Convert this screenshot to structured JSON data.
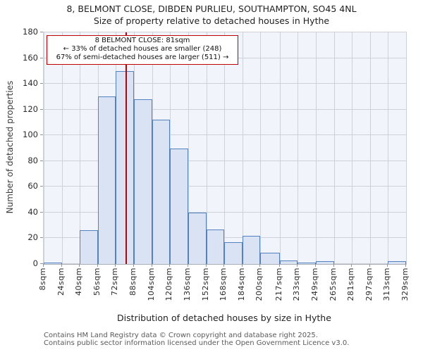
{
  "page": {
    "title_line1": "8, BELMONT CLOSE, DIBDEN PURLIEU, SOUTHAMPTON, SO45 4NL",
    "title_line2": "Size of property relative to detached houses in Hythe"
  },
  "annotation": {
    "line1": "8 BELMONT CLOSE: 81sqm",
    "line2": "← 33% of detached houses are smaller (248)",
    "line3": "67% of semi-detached houses are larger (511) →"
  },
  "footer": {
    "line1": "Contains HM Land Registry data © Crown copyright and database right 2025.",
    "line2": "Contains public sector information licensed under the Open Government Licence v3.0."
  },
  "chart_data": {
    "type": "bar",
    "title": "8, BELMONT CLOSE, DIBDEN PURLIEU, SOUTHAMPTON, SO45 4NL — Size of property relative to detached houses in Hythe",
    "xlabel": "Distribution of detached houses by size in Hythe",
    "ylabel": "Number of detached properties",
    "bin_edges": [
      8,
      24,
      40,
      56,
      72,
      88,
      104,
      120,
      136,
      152,
      168,
      184,
      200,
      217,
      233,
      249,
      265,
      281,
      297,
      313,
      329
    ],
    "values": [
      1,
      0,
      26,
      130,
      150,
      128,
      112,
      90,
      40,
      27,
      17,
      22,
      9,
      3,
      1,
      2,
      0,
      0,
      0,
      2
    ],
    "xtick_labels": [
      "8sqm",
      "24sqm",
      "40sqm",
      "56sqm",
      "72sqm",
      "88sqm",
      "104sqm",
      "120sqm",
      "136sqm",
      "152sqm",
      "168sqm",
      "184sqm",
      "200sqm",
      "217sqm",
      "233sqm",
      "249sqm",
      "265sqm",
      "281sqm",
      "297sqm",
      "313sqm",
      "329sqm"
    ],
    "yticks": [
      0,
      20,
      40,
      60,
      80,
      100,
      120,
      140,
      160,
      180
    ],
    "ylim": [
      0,
      180
    ],
    "xlim": [
      8,
      329
    ],
    "marker_value": 81,
    "grid": true,
    "legend": "none",
    "colors": {
      "bar_fill": "#d9e3f4",
      "bar_border": "#5282c1",
      "marker_line": "#bf0000",
      "annotation_border": "#bf0000",
      "plot_background": "#f1f4fb",
      "gridline": "#ccd1da",
      "footer_text": "#5a5a5a"
    }
  }
}
